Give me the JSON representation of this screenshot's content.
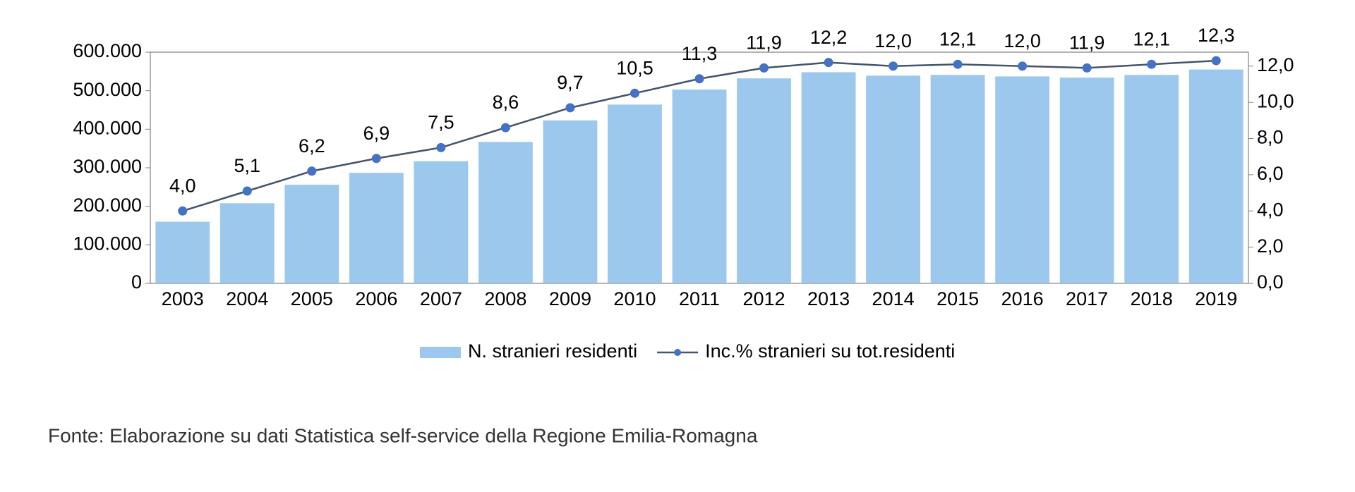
{
  "chart_data": {
    "type": "bar_line",
    "categories": [
      "2003",
      "2004",
      "2005",
      "2006",
      "2007",
      "2008",
      "2009",
      "2010",
      "2011",
      "2012",
      "2013",
      "2014",
      "2015",
      "2016",
      "2017",
      "2018",
      "2019"
    ],
    "series": [
      {
        "name": "N. stranieri residenti",
        "type": "bar",
        "color": "#9dc8ee",
        "values": [
          160000,
          208000,
          256000,
          287000,
          317000,
          367000,
          423000,
          464000,
          503000,
          532000,
          548000,
          539000,
          541000,
          537000,
          534000,
          541000,
          555000
        ]
      },
      {
        "name": "Inc.% stranieri su tot.residenti",
        "type": "line",
        "axis": "y2",
        "color": "#44546a",
        "marker_color": "#4472c4",
        "values": [
          4.0,
          5.1,
          6.2,
          6.9,
          7.5,
          8.6,
          9.7,
          10.5,
          11.3,
          11.9,
          12.2,
          12.0,
          12.1,
          12.0,
          11.9,
          12.1,
          12.3
        ],
        "value_labels": [
          "4,0",
          "5,1",
          "6,2",
          "6,9",
          "7,5",
          "8,6",
          "9,7",
          "10,5",
          "11,3",
          "11,9",
          "12,2",
          "12,0",
          "12,1",
          "12,0",
          "11,9",
          "12,1",
          "12,3"
        ]
      }
    ],
    "ylim": [
      0,
      600000
    ],
    "yticks": [
      {
        "value": 0,
        "label": "0"
      },
      {
        "value": 100000,
        "label": "100.000"
      },
      {
        "value": 200000,
        "label": "200.000"
      },
      {
        "value": 300000,
        "label": "300.000"
      },
      {
        "value": 400000,
        "label": "400.000"
      },
      {
        "value": 500000,
        "label": "500.000"
      },
      {
        "value": 600000,
        "label": "600.000"
      }
    ],
    "y2lim": [
      0,
      12.77
    ],
    "y2ticks": [
      {
        "value": 0,
        "label": "0,0"
      },
      {
        "value": 2,
        "label": "2,0"
      },
      {
        "value": 4,
        "label": "4,0"
      },
      {
        "value": 6,
        "label": "6,0"
      },
      {
        "value": 8,
        "label": "8,0"
      },
      {
        "value": 10,
        "label": "10,0"
      },
      {
        "value": 12,
        "label": "12,0"
      }
    ],
    "grid": false,
    "legend": "bottom",
    "source": "Fonte: Elaborazione su dati Statistica self-service della Regione Emilia-Romagna"
  }
}
